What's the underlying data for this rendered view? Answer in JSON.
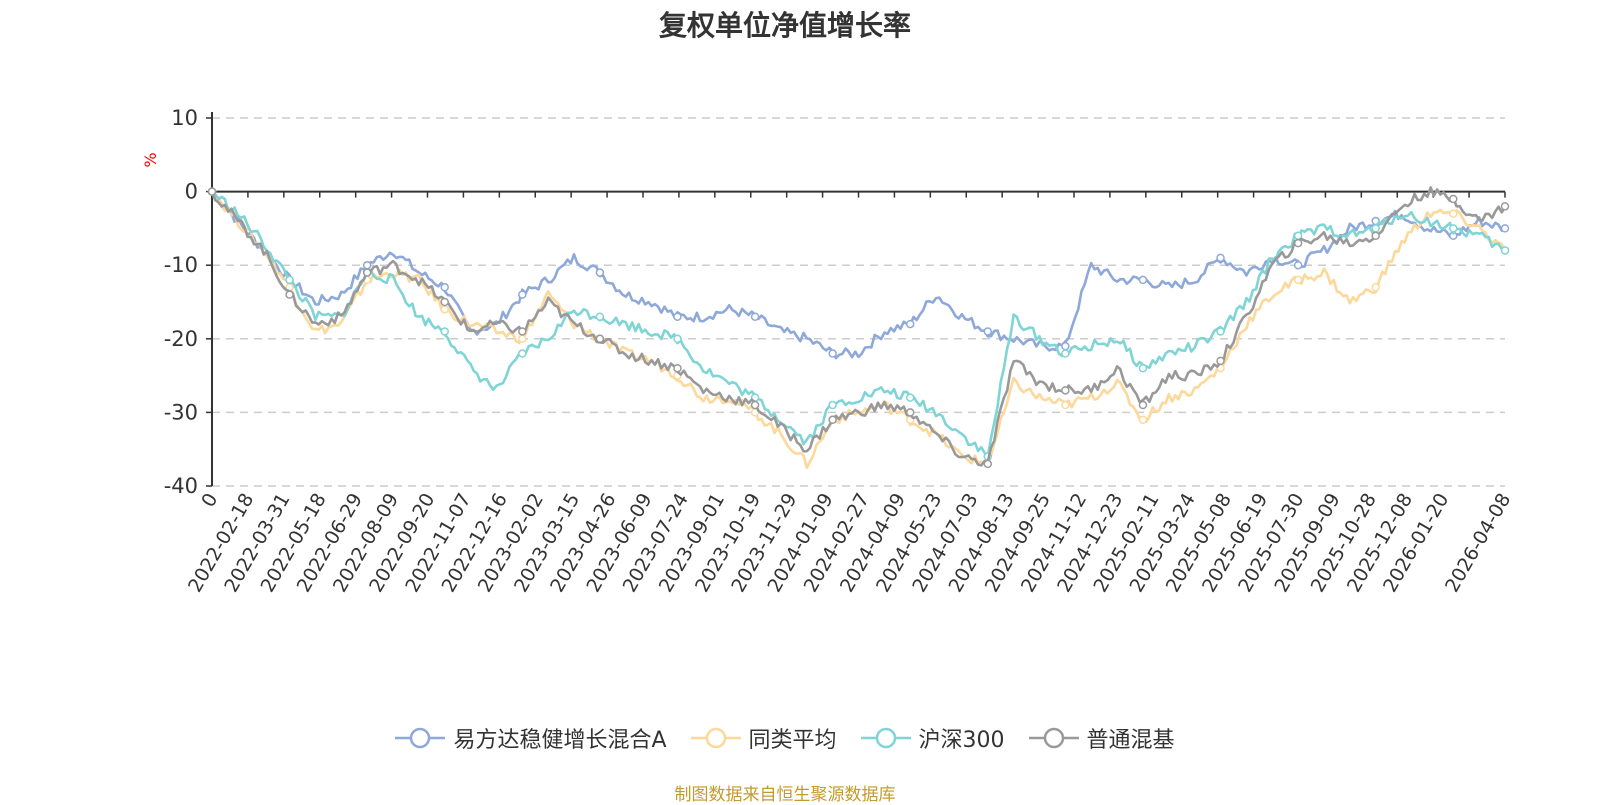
{
  "chart_data": {
    "type": "line",
    "title": "复权单位净值增长率",
    "ylabel": "%",
    "ylim": [
      -40,
      10
    ],
    "yticks": [
      "10",
      "0",
      "-10",
      "-20",
      "-30",
      "-40"
    ],
    "ytick_values": [
      10,
      0,
      -10,
      -20,
      -30,
      -40
    ],
    "x_start_label": "0",
    "x_labels": [
      "2022-02-18",
      "2022-03-31",
      "2022-05-18",
      "2022-06-29",
      "2022-08-09",
      "2022-09-20",
      "2022-11-07",
      "2022-12-16",
      "2023-02-02",
      "2023-03-15",
      "2023-04-26",
      "2023-06-09",
      "2023-07-24",
      "2023-09-01",
      "2023-10-19",
      "2023-11-29",
      "2024-01-09",
      "2024-02-27",
      "2024-04-09",
      "2024-05-23",
      "2024-07-03",
      "2024-08-13",
      "2024-09-25",
      "2024-11-12",
      "2024-12-23",
      "2025-02-11",
      "2025-03-24",
      "2025-05-08",
      "2025-06-19",
      "2025-07-30",
      "2025-09-09",
      "2025-10-28",
      "2025-12-08",
      "2026-01-20",
      "2026-04-08"
    ],
    "grid": true,
    "legend_position": "bottom",
    "series": [
      {
        "name": "易方达稳健增长混合A",
        "color": "#8ea9d9",
        "values": [
          0,
          -4,
          -8,
          -12,
          -15,
          -14,
          -10,
          -8,
          -11,
          -13,
          -19,
          -18,
          -14,
          -12,
          -9,
          -11,
          -14,
          -15,
          -17,
          -17,
          -16,
          -17,
          -19,
          -20,
          -22,
          -22,
          -19,
          -18,
          -14,
          -17,
          -19,
          -20,
          -21,
          -21,
          -10,
          -12,
          -12,
          -13,
          -12,
          -9,
          -11,
          -9,
          -10,
          -8,
          -5,
          -4,
          -3,
          -5,
          -6,
          -4,
          -5
        ]
      },
      {
        "name": "同类平均",
        "color": "#fcd89a",
        "values": [
          0,
          -4,
          -8,
          -13,
          -19,
          -18,
          -12,
          -11,
          -12,
          -16,
          -18,
          -19,
          -20,
          -14,
          -18,
          -20,
          -22,
          -23,
          -25,
          -28,
          -28,
          -30,
          -33,
          -37,
          -31,
          -30,
          -29,
          -31,
          -33,
          -36,
          -37,
          -26,
          -28,
          -29,
          -28,
          -26,
          -31,
          -28,
          -27,
          -24,
          -18,
          -14,
          -12,
          -11,
          -15,
          -13,
          -7,
          -3,
          -3,
          -5,
          -8
        ]
      },
      {
        "name": "沪深300",
        "color": "#7fd4d6",
        "values": [
          0,
          -3,
          -7,
          -12,
          -17,
          -17,
          -11,
          -12,
          -17,
          -19,
          -24,
          -27,
          -22,
          -20,
          -16,
          -17,
          -18,
          -19,
          -20,
          -24,
          -26,
          -28,
          -31,
          -34,
          -29,
          -28,
          -27,
          -28,
          -30,
          -33,
          -36,
          -17,
          -20,
          -22,
          -21,
          -20,
          -24,
          -22,
          -21,
          -19,
          -15,
          -9,
          -6,
          -5,
          -6,
          -5,
          -3,
          -4,
          -5,
          -6,
          -8
        ]
      },
      {
        "name": "普通混基",
        "color": "#999999",
        "values": [
          0,
          -4,
          -8,
          -14,
          -18,
          -17,
          -11,
          -10,
          -12,
          -15,
          -19,
          -18,
          -19,
          -15,
          -18,
          -20,
          -22,
          -23,
          -24,
          -27,
          -28,
          -29,
          -32,
          -35,
          -31,
          -30,
          -29,
          -30,
          -33,
          -36,
          -37,
          -23,
          -26,
          -27,
          -27,
          -24,
          -29,
          -25,
          -25,
          -23,
          -17,
          -10,
          -7,
          -6,
          -7,
          -6,
          -2,
          0,
          -1,
          -4,
          -2
        ]
      }
    ]
  },
  "source_note": "制图数据来自恒生聚源数据库"
}
